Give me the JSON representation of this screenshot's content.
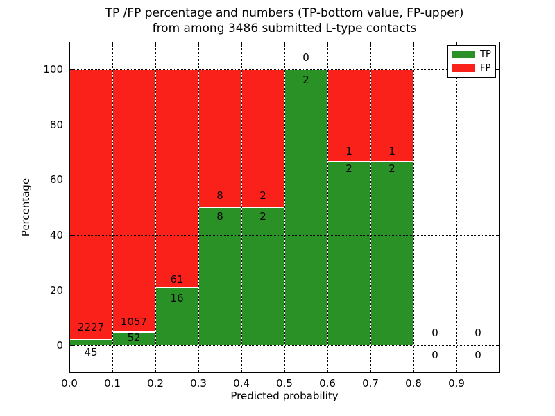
{
  "title": {
    "line1": "TP /FP percentage and numbers (TP-bottom value, FP-upper)",
    "line2": "from among 3486 submitted L-type contacts"
  },
  "axes": {
    "xlabel": "Predicted probability",
    "ylabel": "Percentage",
    "xlim": [
      0,
      1
    ],
    "ylim": [
      -10,
      110
    ],
    "x_ticks": {
      "labels": [
        "0.0",
        "0.1",
        "0.2",
        "0.3",
        "0.4",
        "0.5",
        "0.6",
        "0.7",
        "0.8",
        "0.9"
      ],
      "values": [
        0,
        0.1,
        0.2,
        0.3,
        0.4,
        0.5,
        0.6,
        0.7,
        0.8,
        0.9
      ]
    },
    "y_ticks": {
      "labels": [
        "0",
        "20",
        "40",
        "60",
        "80",
        "100"
      ],
      "values": [
        0,
        20,
        40,
        60,
        80,
        100
      ]
    },
    "x_gridlines": [
      0.1,
      0.2,
      0.3,
      0.4,
      0.5,
      0.6,
      0.7,
      0.8,
      0.9
    ],
    "y_gridlines": [
      0,
      20,
      40,
      60,
      80,
      100
    ],
    "x_tick_marks": [
      0,
      0.1,
      0.2,
      0.3,
      0.4,
      0.5,
      0.6,
      0.7,
      0.8,
      0.9,
      1.0
    ],
    "y_tick_marks": [
      0,
      20,
      40,
      60,
      80,
      100
    ],
    "grid": true
  },
  "legend": {
    "items": [
      {
        "label": "TP",
        "color_key": "tp"
      },
      {
        "label": "FP",
        "color_key": "fp"
      }
    ]
  },
  "colors": {
    "tp": "#2a9127",
    "fp": "#fa211a",
    "bar_edge": "#ffffff",
    "grid": "#000000",
    "text": "#000000",
    "background": "#ffffff"
  },
  "chart_data": {
    "type": "bar",
    "stacked": true,
    "percent_normalized": true,
    "title": "TP /FP percentage and numbers (TP-bottom value, FP-upper) from among 3486 submitted L-type contacts",
    "xlabel": "Predicted probability",
    "ylabel": "Percentage",
    "total_contacts": 3486,
    "legend_position": "upper right",
    "grid": "dotted, drawn over bars",
    "bin_edges": [
      0.0,
      0.1,
      0.2,
      0.3,
      0.4,
      0.5,
      0.6,
      0.7,
      0.8,
      0.9,
      1.0
    ],
    "series": [
      {
        "name": "TP",
        "counts": [
          45,
          52,
          16,
          8,
          2,
          2,
          2,
          2,
          0,
          0
        ],
        "pct": [
          1.98,
          4.69,
          20.78,
          50,
          50,
          100,
          66.67,
          66.67,
          0,
          0
        ]
      },
      {
        "name": "FP",
        "counts": [
          2227,
          1057,
          61,
          8,
          2,
          0,
          1,
          1,
          0,
          0
        ],
        "pct": [
          98.02,
          95.31,
          79.22,
          50,
          50,
          0,
          33.33,
          33.33,
          0,
          0
        ]
      }
    ],
    "bars": [
      {
        "x0": 0.0,
        "x1": 0.1,
        "tp_count": 45,
        "fp_count": 2227,
        "tp_pct": 1.98,
        "fp_label_y": 6.5,
        "tp_label_y": -2.5
      },
      {
        "x0": 0.1,
        "x1": 0.2,
        "tp_count": 52,
        "fp_count": 1057,
        "tp_pct": 4.69,
        "fp_label_y": 8.7,
        "tp_label_y": 2.8
      },
      {
        "x0": 0.2,
        "x1": 0.3,
        "tp_count": 16,
        "fp_count": 61,
        "tp_pct": 20.78,
        "fp_label_y": 24.0,
        "tp_label_y": 17.0
      },
      {
        "x0": 0.3,
        "x1": 0.4,
        "tp_count": 8,
        "fp_count": 8,
        "tp_pct": 50,
        "fp_label_y": 54.3,
        "tp_label_y": 46.8
      },
      {
        "x0": 0.4,
        "x1": 0.5,
        "tp_count": 2,
        "fp_count": 2,
        "tp_pct": 50,
        "fp_label_y": 54.3,
        "tp_label_y": 46.8
      },
      {
        "x0": 0.5,
        "x1": 0.6,
        "tp_count": 2,
        "fp_count": 0,
        "tp_pct": 100,
        "fp_label_y": 104.3,
        "tp_label_y": 96.3
      },
      {
        "x0": 0.6,
        "x1": 0.7,
        "tp_count": 2,
        "fp_count": 1,
        "tp_pct": 66.67,
        "fp_label_y": 70.3,
        "tp_label_y": 64.0
      },
      {
        "x0": 0.7,
        "x1": 0.8,
        "tp_count": 2,
        "fp_count": 1,
        "tp_pct": 66.67,
        "fp_label_y": 70.3,
        "tp_label_y": 64.0
      },
      {
        "x0": 0.8,
        "x1": 0.9,
        "tp_count": 0,
        "fp_count": 0,
        "tp_pct": 0,
        "fp_label_y": 4.5,
        "tp_label_y": -3.5
      },
      {
        "x0": 0.9,
        "x1": 1.0,
        "tp_count": 0,
        "fp_count": 0,
        "tp_pct": 0,
        "fp_label_y": 4.5,
        "tp_label_y": -3.5
      }
    ]
  }
}
